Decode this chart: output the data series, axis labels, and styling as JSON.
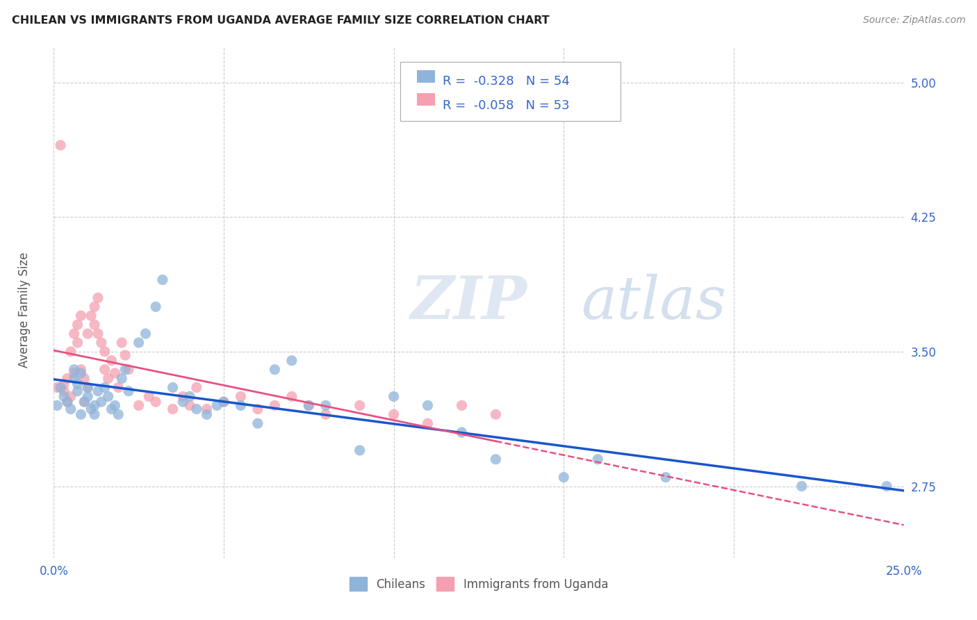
{
  "title": "CHILEAN VS IMMIGRANTS FROM UGANDA AVERAGE FAMILY SIZE CORRELATION CHART",
  "source": "Source: ZipAtlas.com",
  "ylabel": "Average Family Size",
  "xlim": [
    0.0,
    0.25
  ],
  "ylim": [
    2.35,
    5.2
  ],
  "yticks": [
    2.75,
    3.5,
    4.25,
    5.0
  ],
  "xticks": [
    0.0,
    0.05,
    0.1,
    0.15,
    0.2,
    0.25
  ],
  "xticklabels": [
    "0.0%",
    "",
    "",
    "",
    "",
    "25.0%"
  ],
  "background_color": "#ffffff",
  "grid_color": "#cccccc",
  "watermark_zip": "ZIP",
  "watermark_atlas": "atlas",
  "bottom_legend_1": "Chileans",
  "bottom_legend_2": "Immigrants from Uganda",
  "color_chilean": "#8fb4d9",
  "color_uganda": "#f4a0b0",
  "color_chilean_line": "#1a55cc",
  "color_uganda_line": "#e85080",
  "R_chilean": -0.328,
  "N_chilean": 54,
  "R_uganda": -0.058,
  "N_uganda": 53,
  "chilean_x": [
    0.001,
    0.002,
    0.003,
    0.004,
    0.005,
    0.006,
    0.006,
    0.007,
    0.007,
    0.008,
    0.008,
    0.009,
    0.01,
    0.01,
    0.011,
    0.012,
    0.012,
    0.013,
    0.014,
    0.015,
    0.016,
    0.017,
    0.018,
    0.019,
    0.02,
    0.021,
    0.022,
    0.025,
    0.027,
    0.03,
    0.032,
    0.035,
    0.038,
    0.04,
    0.042,
    0.045,
    0.048,
    0.05,
    0.055,
    0.06,
    0.065,
    0.07,
    0.075,
    0.08,
    0.09,
    0.1,
    0.11,
    0.12,
    0.13,
    0.15,
    0.16,
    0.18,
    0.22,
    0.245
  ],
  "chilean_y": [
    3.2,
    3.3,
    3.25,
    3.22,
    3.18,
    3.35,
    3.4,
    3.28,
    3.32,
    3.38,
    3.15,
    3.22,
    3.3,
    3.25,
    3.18,
    3.2,
    3.15,
    3.28,
    3.22,
    3.3,
    3.25,
    3.18,
    3.2,
    3.15,
    3.35,
    3.4,
    3.28,
    3.55,
    3.6,
    3.75,
    3.9,
    3.3,
    3.22,
    3.25,
    3.18,
    3.15,
    3.2,
    3.22,
    3.2,
    3.1,
    3.4,
    3.45,
    3.2,
    3.2,
    2.95,
    3.25,
    3.2,
    3.05,
    2.9,
    2.8,
    2.9,
    2.8,
    2.75,
    2.75
  ],
  "uganda_x": [
    0.001,
    0.002,
    0.003,
    0.003,
    0.004,
    0.004,
    0.005,
    0.005,
    0.006,
    0.006,
    0.007,
    0.007,
    0.008,
    0.008,
    0.009,
    0.009,
    0.01,
    0.01,
    0.011,
    0.012,
    0.012,
    0.013,
    0.013,
    0.014,
    0.015,
    0.015,
    0.016,
    0.017,
    0.018,
    0.019,
    0.02,
    0.021,
    0.022,
    0.025,
    0.028,
    0.03,
    0.035,
    0.038,
    0.04,
    0.042,
    0.045,
    0.05,
    0.055,
    0.06,
    0.065,
    0.07,
    0.075,
    0.08,
    0.09,
    0.1,
    0.11,
    0.12,
    0.13
  ],
  "uganda_y": [
    3.3,
    4.65,
    3.28,
    3.32,
    3.35,
    3.22,
    3.5,
    3.25,
    3.6,
    3.38,
    3.65,
    3.55,
    3.4,
    3.7,
    3.22,
    3.35,
    3.6,
    3.3,
    3.7,
    3.65,
    3.75,
    3.8,
    3.6,
    3.55,
    3.5,
    3.4,
    3.35,
    3.45,
    3.38,
    3.3,
    3.55,
    3.48,
    3.4,
    3.2,
    3.25,
    3.22,
    3.18,
    3.25,
    3.2,
    3.3,
    3.18,
    3.22,
    3.25,
    3.18,
    3.2,
    3.25,
    3.2,
    3.15,
    3.2,
    3.15,
    3.1,
    3.2,
    3.15
  ]
}
